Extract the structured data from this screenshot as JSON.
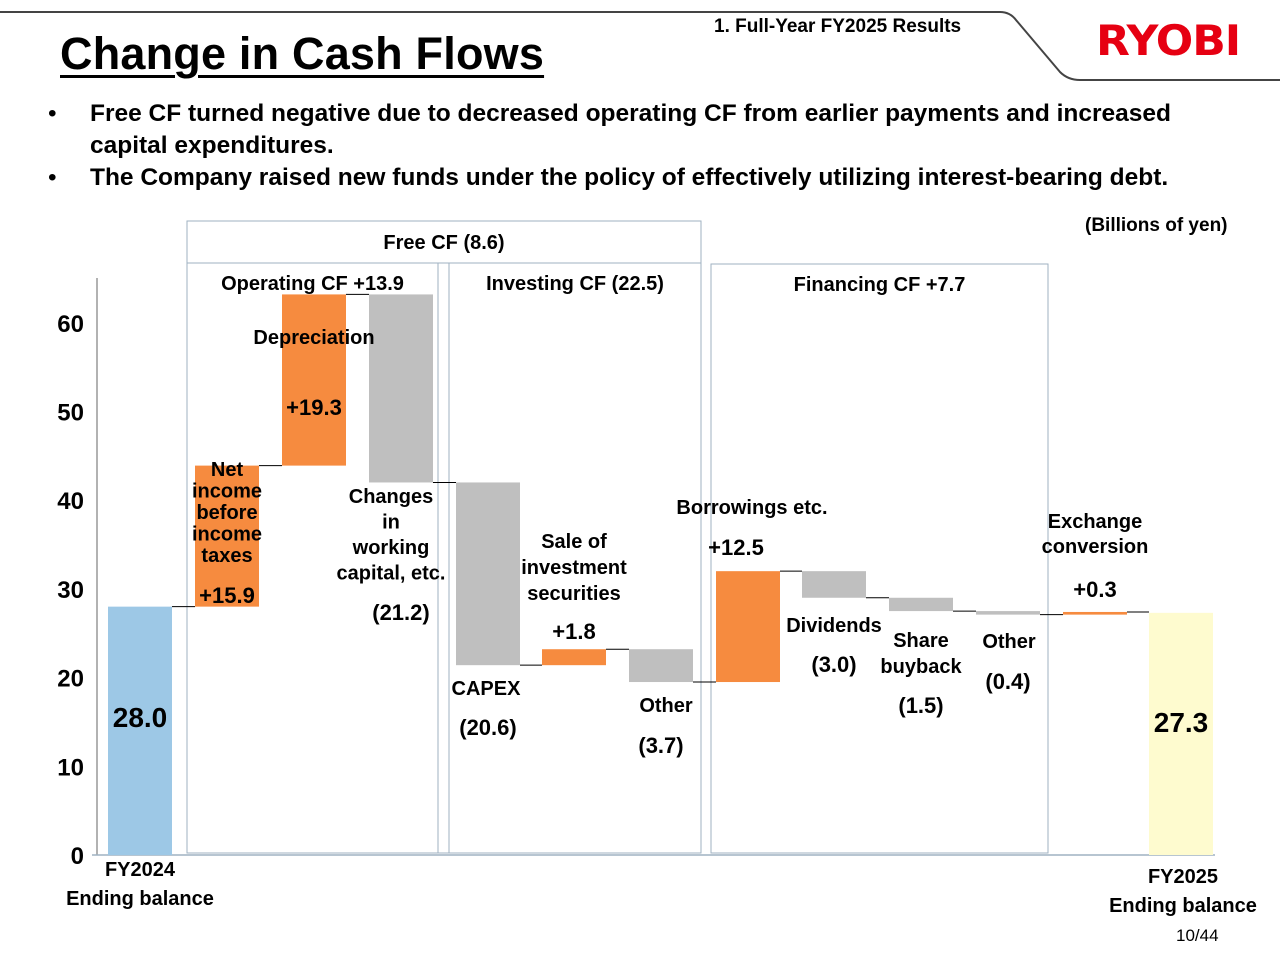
{
  "header": {
    "title": "Change in Cash Flows",
    "section": "1. Full-Year FY2025 Results",
    "logo_text": "RYOBI",
    "logo_color": "#e60012"
  },
  "bullets": [
    "Free CF turned negative due to decreased operating CF from earlier payments and increased capital expenditures.",
    "The Company raised new funds under the policy of effectively utilizing interest-bearing debt."
  ],
  "bullet_glyph": "•",
  "units_label": "(Billions of yen)",
  "page_number": "10/44",
  "colors": {
    "start": "#9dc8e6",
    "end": "#fefbcf",
    "increase": "#f68b3f",
    "decrease": "#bfbfbf",
    "group_border": "#9fb2c2"
  },
  "chart_data": {
    "type": "waterfall",
    "title": "Change in Cash Flows",
    "ylabel": "Billions of yen",
    "ylim": [
      0,
      65
    ],
    "yticks": [
      0,
      10,
      20,
      30,
      40,
      50,
      60
    ],
    "grid": false,
    "steps": [
      {
        "id": "fy2024",
        "label": [
          "FY2024",
          "Ending balance"
        ],
        "kind": "start",
        "value": 28.0,
        "value_label": "28.0"
      },
      {
        "id": "net-income",
        "label": [
          "Net",
          "income",
          "before",
          "income",
          "taxes"
        ],
        "kind": "increase",
        "value": 15.9,
        "value_label": "+15.9"
      },
      {
        "id": "depreciation",
        "label": [
          "Depreciation"
        ],
        "kind": "increase",
        "value": 19.3,
        "value_label": "+19.3"
      },
      {
        "id": "working-capital",
        "label": [
          "Changes",
          "in",
          "working",
          "capital, etc."
        ],
        "kind": "decrease",
        "value": -21.2,
        "value_label": "(21.2)"
      },
      {
        "id": "capex",
        "label": [
          "CAPEX"
        ],
        "kind": "decrease",
        "value": -20.6,
        "value_label": "(20.6)"
      },
      {
        "id": "sale-securities",
        "label": [
          "Sale of",
          "investment",
          "securities"
        ],
        "kind": "increase",
        "value": 1.8,
        "value_label": "+1.8"
      },
      {
        "id": "investing-other",
        "label": [
          "Other"
        ],
        "kind": "decrease",
        "value": -3.7,
        "value_label": "(3.7)"
      },
      {
        "id": "borrowings",
        "label": [
          "Borrowings etc."
        ],
        "kind": "increase",
        "value": 12.5,
        "value_label": "+12.5"
      },
      {
        "id": "dividends",
        "label": [
          "Dividends"
        ],
        "kind": "decrease",
        "value": -3.0,
        "value_label": "(3.0)"
      },
      {
        "id": "share-buyback",
        "label": [
          "Share",
          "buyback"
        ],
        "kind": "decrease",
        "value": -1.5,
        "value_label": "(1.5)"
      },
      {
        "id": "financing-other",
        "label": [
          "Other"
        ],
        "kind": "decrease",
        "value": -0.4,
        "value_label": "(0.4)"
      },
      {
        "id": "exchange",
        "label": [
          "Exchange",
          "conversion"
        ],
        "kind": "increase",
        "value": 0.3,
        "value_label": "+0.3"
      },
      {
        "id": "fy2025",
        "label": [
          "FY2025",
          "Ending balance"
        ],
        "kind": "end",
        "value": 27.3,
        "value_label": "27.3"
      }
    ],
    "groups": [
      {
        "id": "free-cf",
        "label": "Free CF (8.6)",
        "value": -8.6,
        "from_step": 1,
        "to_step": 6
      },
      {
        "id": "operating-cf",
        "label": "Operating CF +13.9",
        "value": 13.9,
        "from_step": 1,
        "to_step": 3
      },
      {
        "id": "investing-cf",
        "label": "Investing CF (22.5)",
        "value": -22.5,
        "from_step": 4,
        "to_step": 6
      },
      {
        "id": "financing-cf",
        "label": "Financing CF +7.7",
        "value": 7.7,
        "from_step": 7,
        "to_step": 10
      }
    ]
  }
}
